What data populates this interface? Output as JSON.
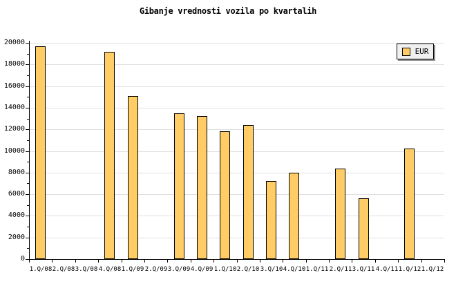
{
  "chart_data": {
    "type": "bar",
    "title": "Gibanje vrednosti vozila po kvartalih",
    "legend": {
      "label": "EUR",
      "position": "top-right"
    },
    "categories": [
      "1.Q/08",
      "2.Q/08",
      "3.Q/08",
      "4.Q/08",
      "1.Q/09",
      "2.Q/09",
      "3.Q/09",
      "4.Q/09",
      "1.Q/10",
      "2.Q/10",
      "3.Q/10",
      "4.Q/10",
      "1.Q/11",
      "2.Q/11",
      "3.Q/11",
      "4.Q/11",
      "1.Q/12",
      "1.Q/12"
    ],
    "values": [
      19700,
      null,
      null,
      19200,
      15100,
      null,
      13500,
      13200,
      11800,
      12400,
      7200,
      8000,
      null,
      8400,
      5600,
      null,
      10200,
      null
    ],
    "xlabel": "",
    "ylabel": "",
    "ylim": [
      0,
      20000
    ],
    "ytick_step": 2000,
    "yminor_step": 1000,
    "ytick_labels": [
      "0",
      "2000",
      "4000",
      "6000",
      "8000",
      "10000",
      "12000",
      "14000",
      "16000",
      "18000",
      "20000"
    ],
    "grid": "horizontal-only",
    "colors": {
      "bar_fill": "#FFCC66",
      "bar_border": "#000000",
      "gridline": "#E0E0E0",
      "axis": "#000000",
      "legend_bg": "#F0F0F0",
      "legend_shadow": "#909090",
      "background": "#FFFFFF",
      "text": "#000000"
    }
  }
}
